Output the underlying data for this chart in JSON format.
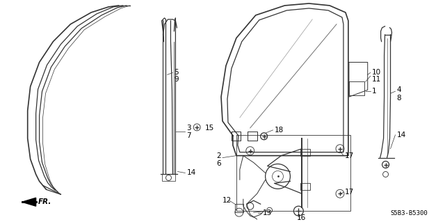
{
  "bg_color": "#ffffff",
  "diagram_code": "S5B3-B5300",
  "line_color": "#333333",
  "lw": 0.9
}
